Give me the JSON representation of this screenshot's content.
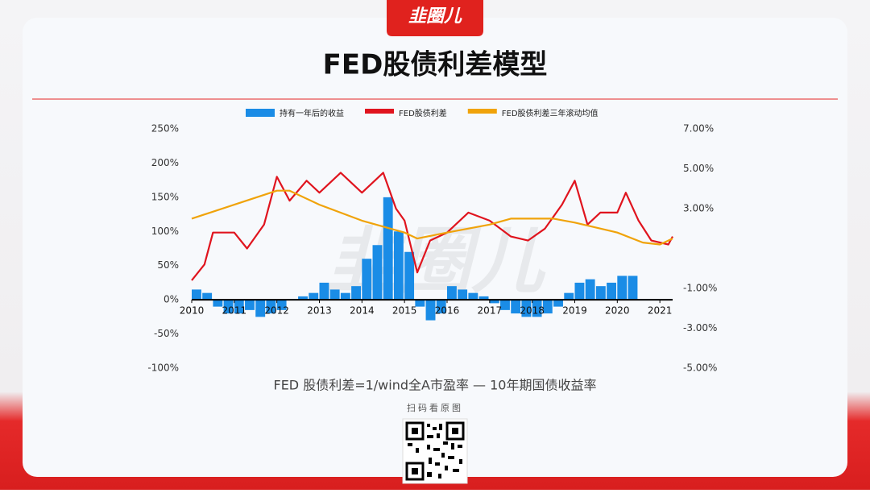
{
  "brand": "韭圈儿",
  "qr_caption": "扫码看原图",
  "chart_data": {
    "type": "combo",
    "title": "FED股债利差模型",
    "annotation": "FED 股债利差=1/wind全A市盈率  —  10年期国债收益率",
    "xlim": [
      2010,
      2021.3
    ],
    "xticks": [
      2010,
      2011,
      2012,
      2013,
      2014,
      2015,
      2016,
      2017,
      2018,
      2019,
      2020,
      2021
    ],
    "ylim": [
      -100,
      250
    ],
    "yticks": [
      {
        "value": -100,
        "label": "-100%"
      },
      {
        "value": -50,
        "label": "-50%"
      },
      {
        "value": 0,
        "label": "0%"
      },
      {
        "value": 50,
        "label": "50%"
      },
      {
        "value": 100,
        "label": "100%"
      },
      {
        "value": 150,
        "label": "150%"
      },
      {
        "value": 200,
        "label": "200%"
      },
      {
        "value": 250,
        "label": "250%"
      }
    ],
    "y2lim": [
      -5,
      7
    ],
    "y2ticks": [
      {
        "value": -5,
        "label": "-5.00%"
      },
      {
        "value": -3,
        "label": "-3.00%"
      },
      {
        "value": -1,
        "label": "-1.00%"
      },
      {
        "value": 3,
        "label": "3.00%"
      },
      {
        "value": 5,
        "label": "5.00%"
      },
      {
        "value": 7,
        "label": "7.00%"
      }
    ],
    "legend": "top",
    "series": [
      {
        "name": "持有一年后的收益",
        "type": "bar",
        "color": "#1a8ce6",
        "x": [
          2010,
          2010.25,
          2010.5,
          2010.75,
          2011,
          2011.25,
          2011.5,
          2011.75,
          2012,
          2012.25,
          2012.5,
          2012.75,
          2013,
          2013.25,
          2013.5,
          2013.75,
          2014,
          2014.25,
          2014.5,
          2014.75,
          2015,
          2015.25,
          2015.5,
          2015.75,
          2016,
          2016.25,
          2016.5,
          2016.75,
          2017,
          2017.25,
          2017.5,
          2017.75,
          2018,
          2018.25,
          2018.5,
          2018.75,
          2019,
          2019.25,
          2019.5,
          2019.75,
          2020,
          2020.25
        ],
        "values": [
          15,
          10,
          -10,
          -20,
          -20,
          -15,
          -25,
          -20,
          -15,
          0,
          5,
          10,
          25,
          15,
          10,
          20,
          60,
          80,
          150,
          100,
          70,
          -10,
          -30,
          -20,
          20,
          15,
          10,
          5,
          -5,
          -15,
          -20,
          -25,
          -25,
          -20,
          -10,
          10,
          25,
          30,
          20,
          25,
          35,
          35
        ]
      },
      {
        "name": "FED股债利差",
        "type": "line",
        "axis": "y2",
        "color": "#e0141e",
        "x": [
          2010,
          2010.3,
          2010.5,
          2011,
          2011.3,
          2011.7,
          2012,
          2012.3,
          2012.7,
          2013,
          2013.5,
          2014,
          2014.3,
          2014.5,
          2014.8,
          2015,
          2015.3,
          2015.6,
          2016,
          2016.5,
          2017,
          2017.5,
          2017.9,
          2018.3,
          2018.7,
          2019,
          2019.3,
          2019.6,
          2020,
          2020.2,
          2020.5,
          2020.8,
          2021.2,
          2021.3
        ],
        "values": [
          -0.6,
          0.2,
          1.8,
          1.8,
          1.0,
          2.2,
          4.6,
          3.4,
          4.4,
          3.8,
          4.8,
          3.8,
          4.4,
          4.8,
          3.0,
          2.4,
          -0.2,
          1.4,
          1.8,
          2.8,
          2.4,
          1.6,
          1.4,
          2.0,
          3.2,
          4.4,
          2.2,
          2.8,
          2.8,
          3.8,
          2.4,
          1.4,
          1.2,
          1.6
        ]
      },
      {
        "name": "FED股债利差三年滚动均值",
        "type": "line",
        "axis": "y2",
        "color": "#f0a30a",
        "x": [
          2010,
          2011,
          2012,
          2012.3,
          2013,
          2014,
          2015,
          2015.3,
          2016,
          2017,
          2017.5,
          2018.5,
          2019,
          2020,
          2020.6,
          2021,
          2021.3
        ],
        "values": [
          2.5,
          3.2,
          3.9,
          3.9,
          3.2,
          2.4,
          1.8,
          1.5,
          1.8,
          2.2,
          2.5,
          2.5,
          2.3,
          1.8,
          1.3,
          1.2,
          1.5
        ]
      }
    ]
  }
}
